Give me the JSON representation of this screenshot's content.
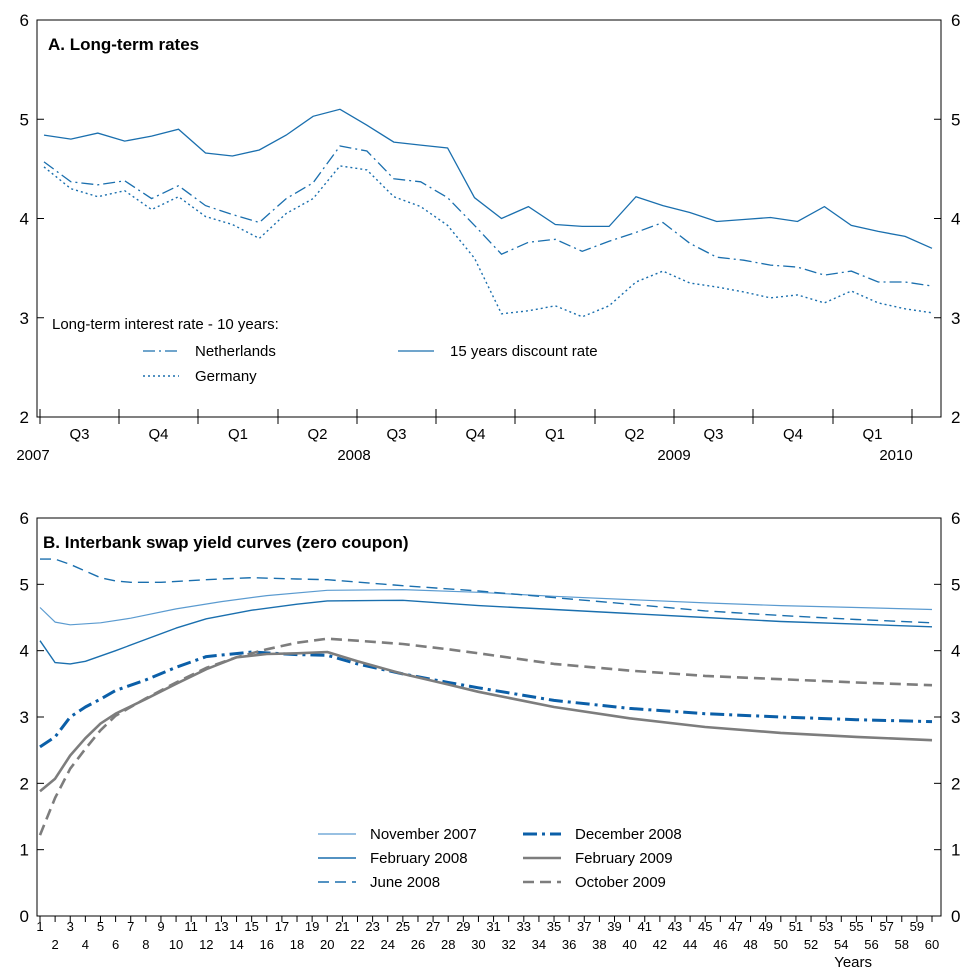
{
  "colors": {
    "blue": "#1a6fae",
    "darkblue": "#0b5fa8",
    "gray": "#7d7d7d",
    "lightblue": "#5b9bd0"
  },
  "chart_data": [
    {
      "type": "line",
      "title": "A. Long-term rates",
      "ylim": [
        2,
        6
      ],
      "yticks": [
        "2",
        "3",
        "4",
        "5",
        "6"
      ],
      "quarter_labels": [
        "Q3",
        "Q4",
        "Q1",
        "Q2",
        "Q3",
        "Q4",
        "Q1",
        "Q2",
        "Q3",
        "Q4",
        "Q1"
      ],
      "year_labels": [
        "2007",
        "2008",
        "2009",
        "2010"
      ],
      "legend_heading": "Long-term interest rate - 10 years:",
      "legend_position": "bottom-left",
      "x_note": "monthly observations, 2007-06 to 2010-02",
      "series": [
        {
          "name": "15 years discount rate",
          "style": "solid",
          "values": [
            4.84,
            4.8,
            4.86,
            4.78,
            4.83,
            4.9,
            4.66,
            4.63,
            4.69,
            4.84,
            5.03,
            5.1,
            4.94,
            4.77,
            4.74,
            4.71,
            4.21,
            4.0,
            4.12,
            3.94,
            3.92,
            3.92,
            4.22,
            4.13,
            4.06,
            3.97,
            3.99,
            4.01,
            3.97,
            4.12,
            3.93,
            3.87,
            3.82,
            3.7
          ]
        },
        {
          "name": "Netherlands",
          "style": "dashdot",
          "values": [
            4.57,
            4.37,
            4.34,
            4.38,
            4.2,
            4.33,
            4.13,
            4.04,
            3.96,
            4.2,
            4.36,
            4.73,
            4.68,
            4.4,
            4.37,
            4.21,
            3.93,
            3.64,
            3.76,
            3.79,
            3.67,
            3.77,
            3.86,
            3.96,
            3.75,
            3.61,
            3.58,
            3.53,
            3.51,
            3.43,
            3.47,
            3.36,
            3.36,
            3.32
          ]
        },
        {
          "name": "Germany",
          "style": "dotted",
          "values": [
            4.52,
            4.3,
            4.22,
            4.28,
            4.09,
            4.22,
            4.02,
            3.94,
            3.8,
            4.05,
            4.2,
            4.53,
            4.49,
            4.22,
            4.12,
            3.93,
            3.6,
            3.04,
            3.07,
            3.12,
            3.01,
            3.12,
            3.36,
            3.47,
            3.35,
            3.31,
            3.26,
            3.2,
            3.23,
            3.15,
            3.27,
            3.15,
            3.09,
            3.05
          ]
        }
      ]
    },
    {
      "type": "line",
      "title": "B. Interbank swap yield curves (zero coupon)",
      "ylim": [
        0,
        6
      ],
      "yticks": [
        "0",
        "1",
        "2",
        "3",
        "4",
        "5",
        "6"
      ],
      "xlabel": "Years",
      "x_range": [
        1,
        60
      ],
      "legend_position": "bottom-center",
      "series": [
        {
          "name": "November 2007",
          "style": "thin",
          "points": [
            [
              1,
              4.65
            ],
            [
              2,
              4.43
            ],
            [
              3,
              4.39
            ],
            [
              5,
              4.42
            ],
            [
              7,
              4.49
            ],
            [
              10,
              4.63
            ],
            [
              13,
              4.74
            ],
            [
              16,
              4.83
            ],
            [
              20,
              4.91
            ],
            [
              25,
              4.92
            ],
            [
              30,
              4.88
            ],
            [
              35,
              4.82
            ],
            [
              40,
              4.77
            ],
            [
              45,
              4.72
            ],
            [
              50,
              4.68
            ],
            [
              55,
              4.65
            ],
            [
              60,
              4.62
            ]
          ]
        },
        {
          "name": "February 2008",
          "style": "solid",
          "points": [
            [
              1,
              4.15
            ],
            [
              2,
              3.82
            ],
            [
              3,
              3.8
            ],
            [
              4,
              3.84
            ],
            [
              6,
              4.0
            ],
            [
              8,
              4.17
            ],
            [
              10,
              4.34
            ],
            [
              12,
              4.48
            ],
            [
              15,
              4.61
            ],
            [
              18,
              4.7
            ],
            [
              20,
              4.75
            ],
            [
              25,
              4.76
            ],
            [
              30,
              4.68
            ],
            [
              35,
              4.62
            ],
            [
              40,
              4.56
            ],
            [
              45,
              4.5
            ],
            [
              50,
              4.44
            ],
            [
              55,
              4.4
            ],
            [
              60,
              4.36
            ]
          ]
        },
        {
          "name": "June 2008",
          "style": "dashed",
          "points": [
            [
              1,
              5.38
            ],
            [
              2,
              5.38
            ],
            [
              3,
              5.3
            ],
            [
              4,
              5.2
            ],
            [
              5,
              5.1
            ],
            [
              6,
              5.05
            ],
            [
              7,
              5.03
            ],
            [
              9,
              5.03
            ],
            [
              12,
              5.07
            ],
            [
              15,
              5.1
            ],
            [
              18,
              5.08
            ],
            [
              20,
              5.07
            ],
            [
              25,
              4.98
            ],
            [
              30,
              4.9
            ],
            [
              35,
              4.8
            ],
            [
              40,
              4.7
            ],
            [
              45,
              4.6
            ],
            [
              50,
              4.53
            ],
            [
              55,
              4.47
            ],
            [
              60,
              4.42
            ]
          ]
        },
        {
          "name": "December 2008",
          "style": "dashdot-bold",
          "points": [
            [
              1,
              2.55
            ],
            [
              2,
              2.7
            ],
            [
              3,
              3.0
            ],
            [
              4,
              3.15
            ],
            [
              5,
              3.27
            ],
            [
              6,
              3.4
            ],
            [
              8,
              3.56
            ],
            [
              10,
              3.75
            ],
            [
              12,
              3.91
            ],
            [
              15,
              3.98
            ],
            [
              18,
              3.94
            ],
            [
              20,
              3.93
            ],
            [
              22,
              3.8
            ],
            [
              25,
              3.65
            ],
            [
              28,
              3.52
            ],
            [
              30,
              3.44
            ],
            [
              35,
              3.25
            ],
            [
              40,
              3.13
            ],
            [
              45,
              3.05
            ],
            [
              50,
              3.0
            ],
            [
              55,
              2.96
            ],
            [
              60,
              2.93
            ]
          ]
        },
        {
          "name": "February 2009",
          "style": "solid-bold",
          "points": [
            [
              1,
              1.88
            ],
            [
              2,
              2.07
            ],
            [
              3,
              2.42
            ],
            [
              4,
              2.68
            ],
            [
              5,
              2.9
            ],
            [
              6,
              3.05
            ],
            [
              8,
              3.27
            ],
            [
              10,
              3.5
            ],
            [
              12,
              3.72
            ],
            [
              14,
              3.9
            ],
            [
              16,
              3.95
            ],
            [
              18,
              3.96
            ],
            [
              20,
              3.98
            ],
            [
              22,
              3.84
            ],
            [
              25,
              3.65
            ],
            [
              28,
              3.49
            ],
            [
              30,
              3.38
            ],
            [
              35,
              3.15
            ],
            [
              40,
              2.98
            ],
            [
              45,
              2.85
            ],
            [
              50,
              2.76
            ],
            [
              55,
              2.7
            ],
            [
              60,
              2.65
            ]
          ]
        },
        {
          "name": "October 2009",
          "style": "dashed-bold",
          "points": [
            [
              1,
              1.22
            ],
            [
              2,
              1.78
            ],
            [
              3,
              2.22
            ],
            [
              4,
              2.52
            ],
            [
              5,
              2.8
            ],
            [
              6,
              3.02
            ],
            [
              8,
              3.28
            ],
            [
              10,
              3.52
            ],
            [
              12,
              3.74
            ],
            [
              14,
              3.9
            ],
            [
              16,
              4.02
            ],
            [
              18,
              4.12
            ],
            [
              20,
              4.18
            ],
            [
              22,
              4.15
            ],
            [
              25,
              4.1
            ],
            [
              28,
              4.02
            ],
            [
              30,
              3.96
            ],
            [
              35,
              3.8
            ],
            [
              40,
              3.7
            ],
            [
              45,
              3.62
            ],
            [
              50,
              3.57
            ],
            [
              55,
              3.52
            ],
            [
              60,
              3.48
            ]
          ]
        }
      ]
    }
  ]
}
